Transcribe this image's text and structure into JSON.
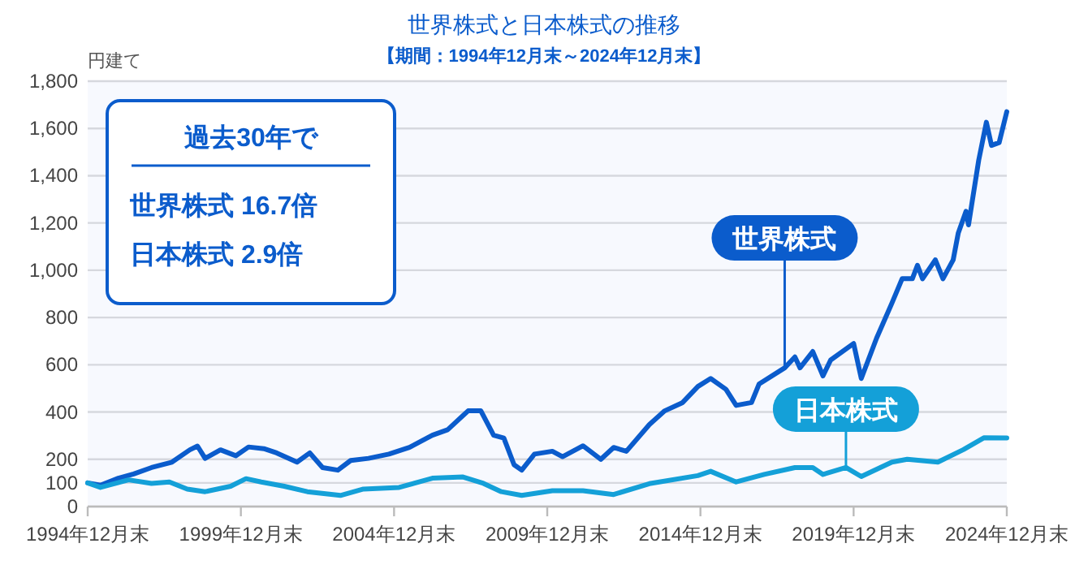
{
  "chart_data": {
    "type": "line",
    "title": "世界株式と日本株式の推移",
    "subtitle": "【期間：1994年12月末～2024年12月末】",
    "ylabel": "円建て",
    "annotations": [
      "過去30年で",
      "世界株式 16.7倍",
      "日本株式 2.9倍"
    ],
    "xlim": [
      "1994-12",
      "2024-12"
    ],
    "ylim": [
      0,
      1800
    ],
    "xticks": [
      {
        "value": "1994-12",
        "label": "1994年12月末"
      },
      {
        "value": "1999-12",
        "label": "1999年12月末"
      },
      {
        "value": "2004-12",
        "label": "2004年12月末"
      },
      {
        "value": "2009-12",
        "label": "2009年12月末"
      },
      {
        "value": "2014-12",
        "label": "2014年12月末"
      },
      {
        "value": "2019-12",
        "label": "2019年12月末"
      },
      {
        "value": "2024-12",
        "label": "2024年12月末"
      }
    ],
    "yticks": [
      0,
      100,
      200,
      400,
      600,
      800,
      {
        "value": 1000,
        "label": "1,000"
      },
      {
        "value": 1200,
        "label": "1,200"
      },
      {
        "value": 1400,
        "label": "1,400"
      },
      {
        "value": 1600,
        "label": "1,600"
      },
      {
        "value": 1800,
        "label": "1,800"
      }
    ],
    "grid": "y",
    "series": [
      {
        "name": "世界株式",
        "color": "#0b5ccc",
        "x": [
          "1994-12",
          "1995-05",
          "1995-12",
          "1996-06",
          "1997-01",
          "1997-09",
          "1998-04",
          "1998-07",
          "1998-10",
          "1999-04",
          "1999-10",
          "2000-03",
          "2000-09",
          "2001-02",
          "2001-10",
          "2002-03",
          "2002-08",
          "2003-02",
          "2003-07",
          "2004-02",
          "2004-10",
          "2005-06",
          "2006-03",
          "2006-09",
          "2007-05",
          "2007-10",
          "2008-03",
          "2008-07",
          "2008-11",
          "2009-02",
          "2009-07",
          "2010-02",
          "2010-06",
          "2011-02",
          "2011-09",
          "2012-02",
          "2012-07",
          "2013-04",
          "2013-10",
          "2014-05",
          "2014-11",
          "2015-04",
          "2015-10",
          "2016-02",
          "2016-08",
          "2016-11",
          "2017-09",
          "2018-01",
          "2018-03",
          "2018-08",
          "2018-12",
          "2019-03",
          "2019-12",
          "2020-03",
          "2020-09",
          "2021-03",
          "2021-07",
          "2021-11",
          "2022-01",
          "2022-03",
          "2022-08",
          "2022-11",
          "2023-03",
          "2023-05",
          "2023-08",
          "2023-09",
          "2024-01",
          "2024-04",
          "2024-06",
          "2024-09",
          "2024-12"
        ],
        "values": [
          100,
          90,
          120,
          138,
          165,
          188,
          240,
          256,
          204,
          240,
          215,
          252,
          245,
          227,
          188,
          227,
          165,
          154,
          195,
          204,
          222,
          250,
          302,
          325,
          405,
          405,
          302,
          290,
          177,
          154,
          222,
          234,
          211,
          257,
          200,
          250,
          234,
          347,
          405,
          440,
          508,
          542,
          496,
          428,
          440,
          519,
          587,
          633,
          587,
          656,
          553,
          620,
          690,
          542,
          713,
          861,
          964,
          964,
          1021,
          964,
          1044,
          964,
          1044,
          1158,
          1249,
          1192,
          1466,
          1626,
          1528,
          1540,
          1671
        ]
      },
      {
        "name": "日本株式",
        "color": "#14a0d8",
        "x": [
          "1994-12",
          "1995-05",
          "1996-04",
          "1997-01",
          "1997-08",
          "1998-03",
          "1998-10",
          "1999-08",
          "2000-02",
          "2000-08",
          "2001-05",
          "2002-02",
          "2003-03",
          "2003-12",
          "2005-02",
          "2006-03",
          "2007-03",
          "2007-11",
          "2008-06",
          "2009-02",
          "2010-02",
          "2011-02",
          "2012-02",
          "2013-04",
          "2014-11",
          "2015-04",
          "2016-02",
          "2017-01",
          "2018-01",
          "2018-08",
          "2018-12",
          "2019-09",
          "2020-03",
          "2021-03",
          "2021-09",
          "2022-09",
          "2023-07",
          "2024-03",
          "2024-12"
        ],
        "values": [
          100,
          81,
          113,
          98,
          104,
          74,
          63,
          86,
          118,
          104,
          86,
          63,
          47,
          74,
          81,
          120,
          125,
          98,
          63,
          47,
          67,
          67,
          51,
          97,
          131,
          149,
          104,
          136,
          165,
          165,
          136,
          165,
          127,
          188,
          200,
          188,
          241,
          291,
          290
        ]
      }
    ]
  }
}
